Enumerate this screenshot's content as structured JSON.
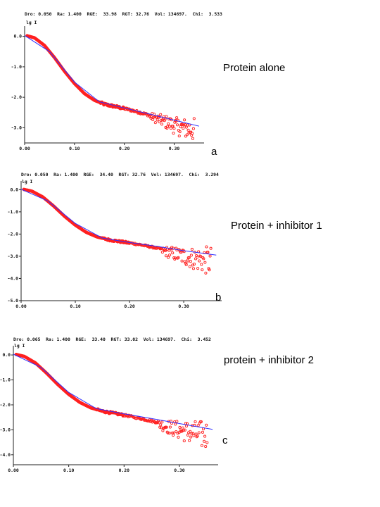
{
  "panels": [
    {
      "header": "Dro: 0.050  Ra: 1.400  RGE:  33.98  RGT: 32.76  Vol: 134697.  Chi:  3.533",
      "caption": "Protein alone",
      "letter": "a"
    },
    {
      "header": "Dro: 0.050  Ra: 1.400  RGE:  34.40  RGT: 32.76  Vol: 134697.  Chi:  3.294",
      "caption": "Protein  + inhibitor 1",
      "letter": "b"
    },
    {
      "header": "Dro: 0.065  Ra: 1.400  RGE:  33.40  RGT: 33.02  Vol: 134697.  Chi:  3.452",
      "caption": "protein + inhibitor 2",
      "letter": "c"
    }
  ],
  "chart_data": [
    {
      "type": "scatter",
      "ylabel": "lg I",
      "xlim": [
        0.0,
        0.36
      ],
      "ylim": [
        -3.5,
        0.2
      ],
      "x_ticks": [
        "0.00",
        "0.10",
        "0.20",
        "0.30"
      ],
      "y_ticks": [
        "0.0",
        "-1.0",
        "-2.0",
        "-3.0"
      ],
      "x_tick_values": [
        0.0,
        0.1,
        0.2,
        0.3
      ],
      "y_tick_values": [
        0.0,
        -1.0,
        -2.0,
        -3.0
      ],
      "series": [
        {
          "color": "#ff2020",
          "marker": "circle",
          "x": [
            0.005,
            0.02,
            0.04,
            0.06,
            0.08,
            0.1,
            0.12,
            0.14,
            0.16,
            0.18,
            0.2,
            0.22,
            0.24,
            0.26,
            0.28,
            0.3,
            0.32,
            0.34
          ],
          "y": [
            0.02,
            -0.05,
            -0.3,
            -0.7,
            -1.15,
            -1.55,
            -1.88,
            -2.1,
            -2.23,
            -2.3,
            -2.37,
            -2.45,
            -2.54,
            -2.63,
            -2.73,
            -2.85,
            -2.92,
            -2.95
          ],
          "scatter_from_x": 0.25,
          "scatter_spread": 0.35
        },
        {
          "color": "#3030ff",
          "marker": "line",
          "x": [
            0.0,
            0.05,
            0.1,
            0.15,
            0.2,
            0.25,
            0.3,
            0.35
          ],
          "y": [
            0.03,
            -0.5,
            -1.5,
            -2.15,
            -2.35,
            -2.55,
            -2.75,
            -2.95
          ]
        }
      ]
    },
    {
      "type": "scatter",
      "ylabel": "lg I",
      "xlim": [
        0.0,
        0.37
      ],
      "ylim": [
        -5.0,
        0.2
      ],
      "x_ticks": [
        "0.00",
        "0.10",
        "0.20",
        "0.30"
      ],
      "y_ticks": [
        "0.0",
        "-1.0",
        "-2.0",
        "-3.0",
        "-4.0",
        "-5.0"
      ],
      "x_tick_values": [
        0.0,
        0.1,
        0.2,
        0.3
      ],
      "y_tick_values": [
        0.0,
        -1.0,
        -2.0,
        -3.0,
        -4.0,
        -5.0
      ],
      "series": [
        {
          "color": "#ff2020",
          "marker": "circle",
          "x": [
            0.005,
            0.02,
            0.04,
            0.06,
            0.08,
            0.1,
            0.12,
            0.14,
            0.16,
            0.18,
            0.2,
            0.22,
            0.24,
            0.26,
            0.28,
            0.3,
            0.32,
            0.34,
            0.35
          ],
          "y": [
            0.01,
            -0.07,
            -0.33,
            -0.74,
            -1.2,
            -1.6,
            -1.92,
            -2.13,
            -2.25,
            -2.33,
            -2.4,
            -2.48,
            -2.58,
            -2.68,
            -2.78,
            -2.88,
            -2.95,
            -3.0,
            -3.02
          ],
          "scatter_from_x": 0.26,
          "scatter_spread": 0.6
        },
        {
          "color": "#3030ff",
          "marker": "line",
          "x": [
            0.0,
            0.05,
            0.1,
            0.15,
            0.2,
            0.25,
            0.3,
            0.36
          ],
          "y": [
            0.02,
            -0.52,
            -1.52,
            -2.18,
            -2.38,
            -2.55,
            -2.75,
            -2.95
          ]
        }
      ]
    },
    {
      "type": "scatter",
      "ylabel": "lg I",
      "xlim": [
        0.0,
        0.37
      ],
      "ylim": [
        -4.4,
        0.2
      ],
      "x_ticks": [
        "0.00",
        "0.10",
        "0.20",
        "0.30"
      ],
      "y_ticks": [
        "0.0",
        "-1.0",
        "-2.0",
        "-3.0",
        "-4.0"
      ],
      "x_tick_values": [
        0.0,
        0.1,
        0.2,
        0.3
      ],
      "y_tick_values": [
        0.0,
        -1.0,
        -2.0,
        -3.0,
        -4.0
      ],
      "series": [
        {
          "color": "#ff2020",
          "marker": "circle",
          "x": [
            0.005,
            0.02,
            0.04,
            0.06,
            0.08,
            0.1,
            0.12,
            0.14,
            0.16,
            0.18,
            0.2,
            0.22,
            0.24,
            0.26,
            0.28,
            0.3,
            0.32,
            0.34,
            0.35
          ],
          "y": [
            0.02,
            -0.06,
            -0.32,
            -0.73,
            -1.18,
            -1.58,
            -1.9,
            -2.12,
            -2.25,
            -2.33,
            -2.41,
            -2.5,
            -2.6,
            -2.7,
            -2.8,
            -2.9,
            -2.97,
            -3.03,
            -3.05
          ],
          "scatter_from_x": 0.26,
          "scatter_spread": 0.55
        },
        {
          "color": "#3030ff",
          "marker": "line",
          "x": [
            0.0,
            0.05,
            0.1,
            0.15,
            0.2,
            0.25,
            0.3,
            0.36
          ],
          "y": [
            0.03,
            -0.5,
            -1.5,
            -2.15,
            -2.36,
            -2.55,
            -2.75,
            -2.98
          ]
        }
      ]
    }
  ]
}
